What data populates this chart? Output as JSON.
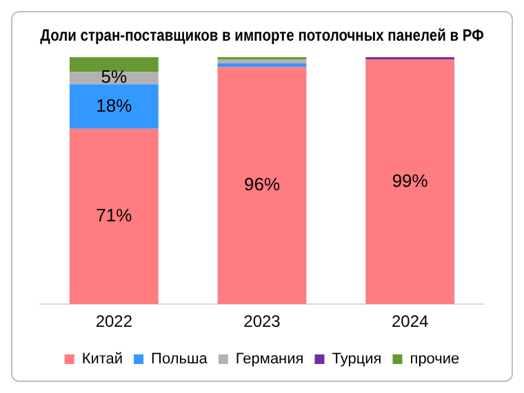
{
  "chart_data": {
    "type": "bar",
    "stacked": true,
    "title": "Доли стран-поставщиков в импорте потолочных панелей в РФ",
    "categories": [
      "2022",
      "2023",
      "2024"
    ],
    "series": [
      {
        "name": "Китай",
        "color": "#ff7c80",
        "values": [
          71,
          96,
          99
        ],
        "value_labels": [
          "71%",
          "96%",
          "99%"
        ]
      },
      {
        "name": "Польша",
        "color": "#3399ff",
        "values": [
          18,
          1.5,
          0
        ],
        "value_labels": [
          "18%",
          null,
          null
        ]
      },
      {
        "name": "Германия",
        "color": "#b2b2b2",
        "values": [
          5,
          1.5,
          0
        ],
        "value_labels": [
          "5%",
          null,
          null
        ]
      },
      {
        "name": "Турция",
        "color": "#7030a0",
        "values": [
          0,
          0,
          1
        ],
        "value_labels": [
          null,
          null,
          null
        ]
      },
      {
        "name": "прочие",
        "color": "#669933",
        "values": [
          6,
          1,
          0
        ],
        "value_labels": [
          null,
          null,
          null
        ]
      }
    ],
    "legend": "bottom",
    "grid": false
  }
}
